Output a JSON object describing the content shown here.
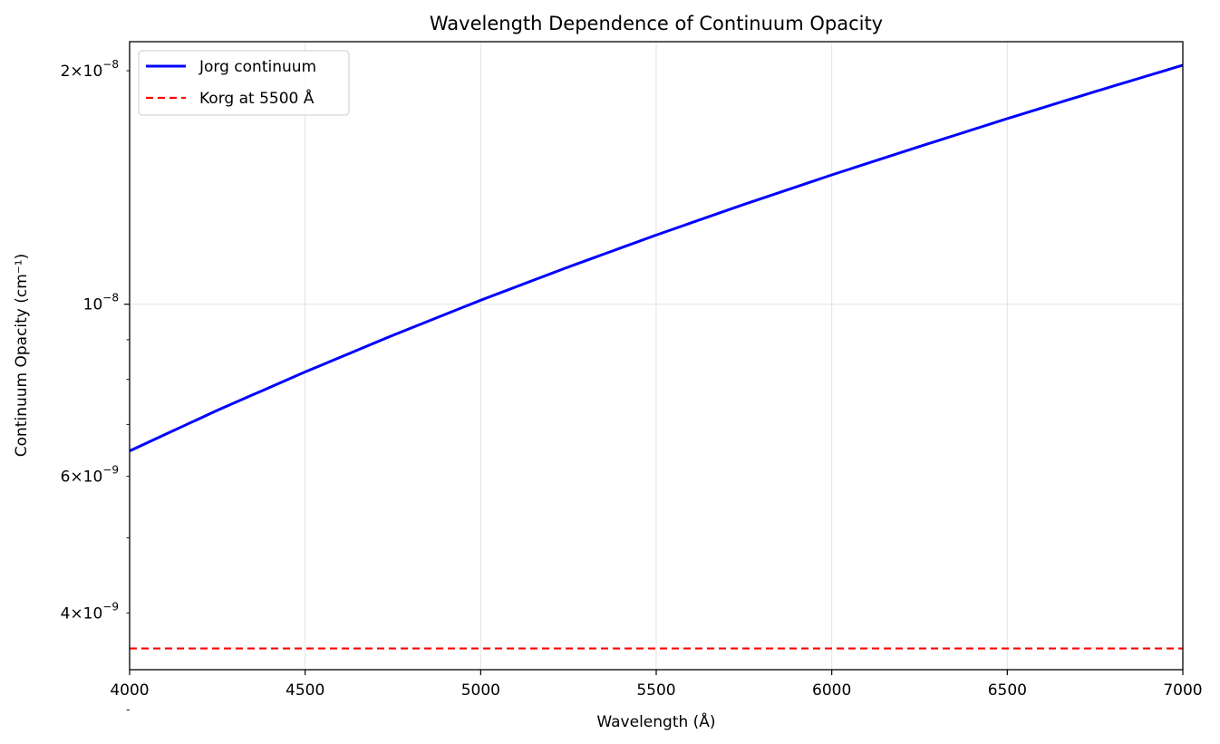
{
  "chart_data": {
    "type": "line",
    "title": "Wavelength Dependence of Continuum Opacity",
    "xlabel": "Wavelength (Å)",
    "ylabel": "Continuum Opacity (cm⁻¹)",
    "xlim": [
      4000,
      7000
    ],
    "ylim": [
      3.38e-09,
      2.18e-08
    ],
    "yscale": "log",
    "grid": true,
    "legend_position": "top-left",
    "x_ticks": [
      {
        "value": 4000,
        "label": "4000"
      },
      {
        "value": 4500,
        "label": "4500"
      },
      {
        "value": 5000,
        "label": "5000"
      },
      {
        "value": 5500,
        "label": "5500"
      },
      {
        "value": 6000,
        "label": "6000"
      },
      {
        "value": 6500,
        "label": "6500"
      },
      {
        "value": 7000,
        "label": "7000"
      }
    ],
    "y_major_ticks": [
      {
        "value": 1e-08,
        "mantissa": "",
        "base": "10",
        "exp": "−8"
      }
    ],
    "y_minor_ticks": [
      {
        "value": 2e-08,
        "mantissa": "2",
        "base": "10",
        "exp": "−8"
      },
      {
        "value": 6e-09,
        "mantissa": "6",
        "base": "10",
        "exp": "−9"
      },
      {
        "value": 4e-09,
        "mantissa": "4",
        "base": "10",
        "exp": "−9"
      },
      {
        "value": 3e-09,
        "mantissa": "",
        "base": "",
        "exp": ""
      },
      {
        "value": 5e-09,
        "mantissa": "",
        "base": "",
        "exp": ""
      },
      {
        "value": 7e-09,
        "mantissa": "",
        "base": "",
        "exp": ""
      },
      {
        "value": 8e-09,
        "mantissa": "",
        "base": "",
        "exp": ""
      },
      {
        "value": 9e-09,
        "mantissa": "",
        "base": "",
        "exp": ""
      }
    ],
    "series": [
      {
        "name": "Jorg continuum",
        "color": "#0000ff",
        "style": "solid",
        "x": [
          4000,
          4250,
          4500,
          4750,
          5000,
          5250,
          5500,
          5750,
          6000,
          6250,
          6500,
          6750,
          7000
        ],
        "y": [
          6.47e-09,
          7.3e-09,
          8.18e-09,
          9.12e-09,
          1.012e-08,
          1.117e-08,
          1.228e-08,
          1.345e-08,
          1.468e-08,
          1.597e-08,
          1.735e-08,
          1.88e-08,
          2.033e-08
        ]
      },
      {
        "name": "Korg at 5500 Å",
        "color": "#ff0000",
        "style": "dashed",
        "x": [
          4000,
          7000
        ],
        "y": [
          3.6e-09,
          3.6e-09
        ]
      }
    ]
  }
}
